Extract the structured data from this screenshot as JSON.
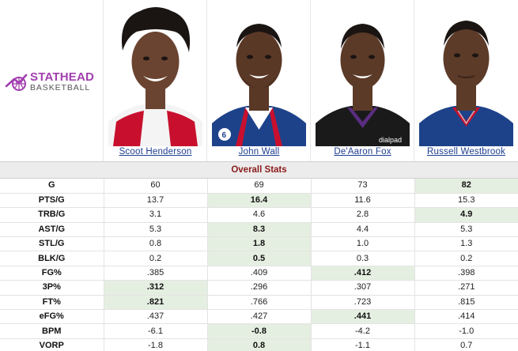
{
  "brand": {
    "top": "STATHEAD",
    "bottom": "BASKETBALL",
    "accent": "#a23fb0"
  },
  "players": [
    {
      "name": "Scoot Henderson",
      "jersey": "white-red",
      "jersey_color": "#ffffff",
      "trim_color": "#c8102e",
      "skin": "#6b4431",
      "hair": "afro"
    },
    {
      "name": "John Wall",
      "jersey": "blue-red-white",
      "jersey_color": "#1d428a",
      "trim_color": "#c8102e",
      "skin": "#5a3826",
      "hair": "short"
    },
    {
      "name": "De'Aaron Fox",
      "jersey": "black-purple",
      "jersey_color": "#1a1a1a",
      "trim_color": "#5a2d81",
      "skin": "#5b3a28",
      "hair": "short"
    },
    {
      "name": "Russell Westbrook",
      "jersey": "blue-red",
      "jersey_color": "#1d428a",
      "trim_color": "#c8102e",
      "skin": "#5c3b29",
      "hair": "short"
    }
  ],
  "section_title": "Overall Stats",
  "highlight_color": "#e5efe1",
  "rows": [
    {
      "label": "G",
      "values": [
        "60",
        "69",
        "73",
        "82"
      ],
      "best": 3
    },
    {
      "label": "PTS/G",
      "values": [
        "13.7",
        "16.4",
        "11.6",
        "15.3"
      ],
      "best": 1
    },
    {
      "label": "TRB/G",
      "values": [
        "3.1",
        "4.6",
        "2.8",
        "4.9"
      ],
      "best": 3
    },
    {
      "label": "AST/G",
      "values": [
        "5.3",
        "8.3",
        "4.4",
        "5.3"
      ],
      "best": 1
    },
    {
      "label": "STL/G",
      "values": [
        "0.8",
        "1.8",
        "1.0",
        "1.3"
      ],
      "best": 1
    },
    {
      "label": "BLK/G",
      "values": [
        "0.2",
        "0.5",
        "0.3",
        "0.2"
      ],
      "best": 1
    },
    {
      "label": "FG%",
      "values": [
        ".385",
        ".409",
        ".412",
        ".398"
      ],
      "best": 2
    },
    {
      "label": "3P%",
      "values": [
        ".312",
        ".296",
        ".307",
        ".271"
      ],
      "best": 0
    },
    {
      "label": "FT%",
      "values": [
        ".821",
        ".766",
        ".723",
        ".815"
      ],
      "best": 0
    },
    {
      "label": "eFG%",
      "values": [
        ".437",
        ".427",
        ".441",
        ".414"
      ],
      "best": 2
    },
    {
      "label": "BPM",
      "values": [
        "-6.1",
        "-0.8",
        "-4.2",
        "-1.0"
      ],
      "best": 1
    },
    {
      "label": "VORP",
      "values": [
        "-1.8",
        "0.8",
        "-1.1",
        "0.7"
      ],
      "best": 1
    }
  ]
}
